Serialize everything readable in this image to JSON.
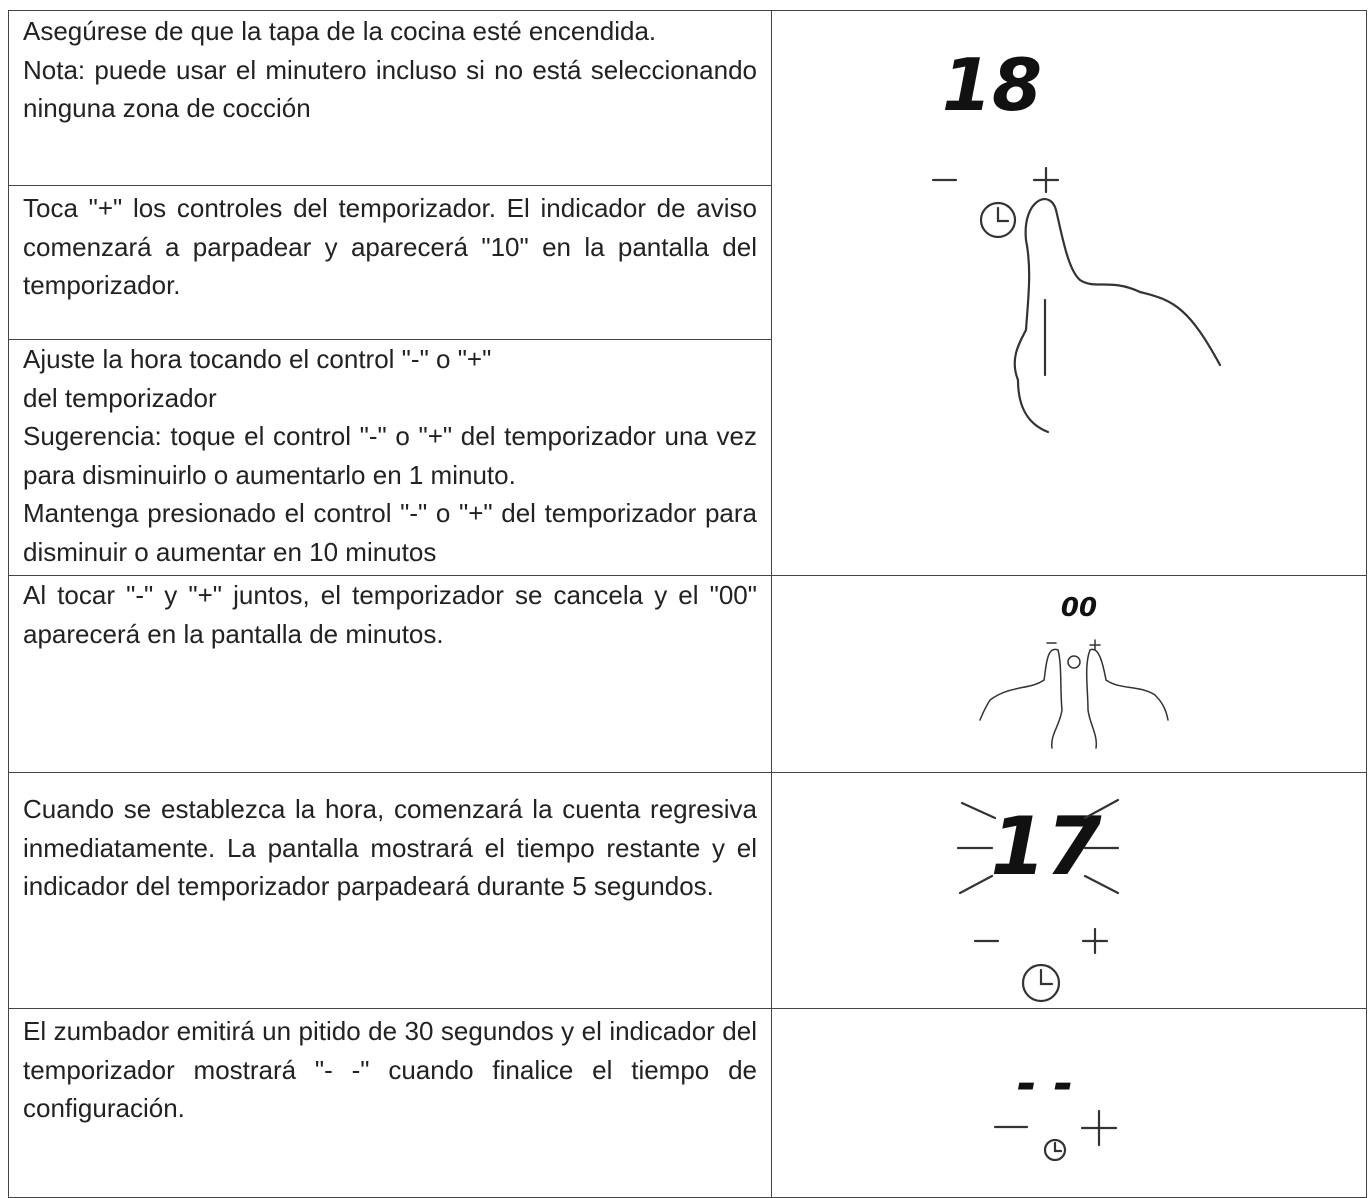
{
  "rows": [
    {
      "paragraphs": [
        "Asegúrese de que la tapa de la cocina esté encendida.",
        "Nota: puede usar el minutero incluso si no está seleccionando ninguna zona de cocción"
      ]
    },
    {
      "paragraphs": [
        "Toca \"+\" los controles del temporizador. El indicador de aviso comenzará a parpadear y aparecerá \"10\" en la pantalla del temporizador."
      ]
    },
    {
      "paragraphs": [
        "Ajuste la hora tocando el control \"-\" o \"+\"",
        "del temporizador",
        "Sugerencia: toque el control \"-\" o \"+\" del temporizador una vez para disminuirlo o aumentarlo en 1 minuto.",
        "Mantenga presionado el control \"-\" o \"+\" del temporizador para disminuir o aumentar en 10 minutos"
      ]
    },
    {
      "paragraphs": [
        "Al tocar \"-\" y \"+\" juntos, el temporizador se cancela y el \"00\" aparecerá en la pantalla de minutos."
      ]
    },
    {
      "paragraphs": [
        "Cuando se establezca la hora, comenzará la cuenta regresiva inmediatamente. La pantalla mostrará el tiempo restante y el indicador del temporizador parpadeará durante 5 segundos."
      ]
    },
    {
      "paragraphs": [
        "El zumbador emitirá un pitido de 30 segundos y el indicador del temporizador mostrará \"- -\" cuando finalice el tiempo de configuración."
      ]
    }
  ],
  "illustrations": [
    {
      "display": "18"
    },
    {
      "display": "00"
    },
    {
      "display": "17"
    },
    {
      "display": "- -"
    }
  ]
}
